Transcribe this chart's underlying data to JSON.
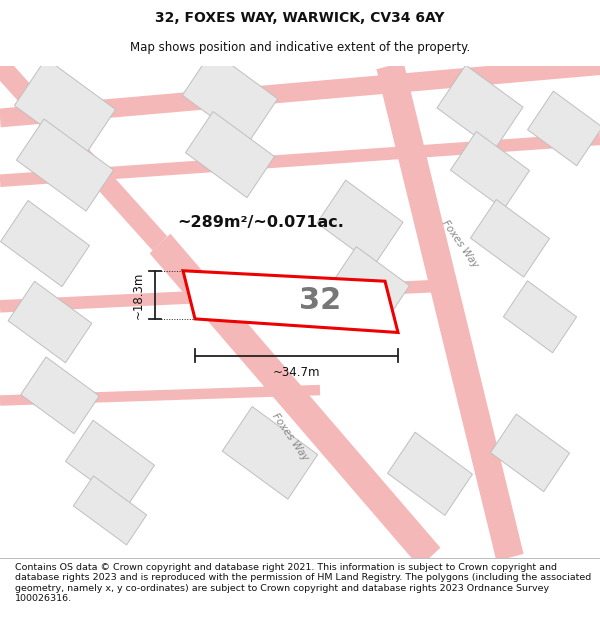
{
  "title": "32, FOXES WAY, WARWICK, CV34 6AY",
  "subtitle": "Map shows position and indicative extent of the property.",
  "area_label": "~289m²/~0.071ac.",
  "width_label": "~34.7m",
  "height_label": "~18.3m",
  "parcel_label": "32",
  "footer_text": "Contains OS data © Crown copyright and database right 2021. This information is subject to Crown copyright and database rights 2023 and is reproduced with the permission of HM Land Registry. The polygons (including the associated geometry, namely x, y co-ordinates) are subject to Crown copyright and database rights 2023 Ordnance Survey 100026316.",
  "bg_color": "#ffffff",
  "map_bg": "#ffffff",
  "road_color": "#f5b8b8",
  "building_fill": "#e8e8e8",
  "building_edge": "#c0bfbe",
  "parcel_edge": "#ee0000",
  "title_fontsize": 10,
  "subtitle_fontsize": 8.5,
  "footer_fontsize": 6.8
}
